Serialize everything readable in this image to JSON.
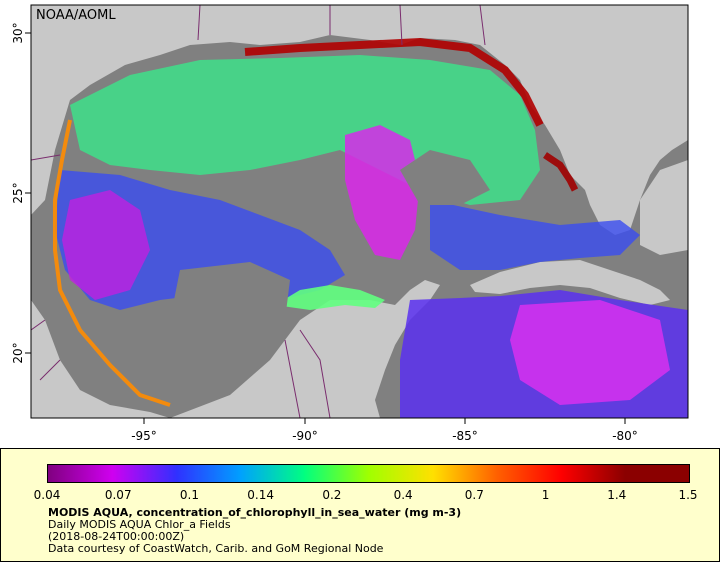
{
  "credit": "NOAA/AOML",
  "axes": {
    "lon_labels": [
      "-95°",
      "-90°",
      "-85°",
      "-80°"
    ],
    "lat_labels": [
      "30°",
      "25°",
      "20°"
    ]
  },
  "map": {
    "land_color": "#c8c8c8",
    "nodata_color": "#808080",
    "border_color": "#7a2d6e",
    "frame_color": "#000000"
  },
  "colorbar": {
    "tick_labels": [
      "0.04",
      "0.07",
      "0.1",
      "0.14",
      "0.2",
      "0.4",
      "0.7",
      "1",
      "1.4",
      "1.5"
    ],
    "colors": [
      "#800080",
      "#d000f0",
      "#3030ff",
      "#00a0ff",
      "#00ff80",
      "#a0ff00",
      "#ffe000",
      "#ff6000",
      "#ff0000",
      "#8b0000"
    ]
  },
  "legend": {
    "title": "MODIS AQUA, concentration_of_chlorophyll_in_sea_water (mg m-3)",
    "line1": "Daily MODIS AQUA Chlor_a Fields",
    "line2": "(2018-08-24T00:00:00Z)",
    "line3": "Data courtesy of CoastWatch, Carib. and GoM Regional Node"
  }
}
